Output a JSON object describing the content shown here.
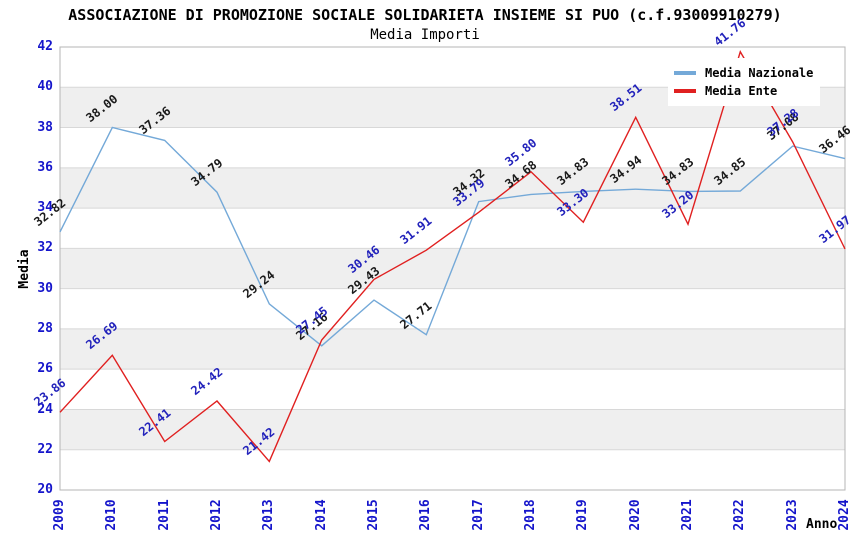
{
  "title": "ASSOCIAZIONE DI PROMOZIONE SOCIALE SOLIDARIETA INSIEME SI PUO (c.f.93009910279)",
  "subtitle": "Media Importi",
  "chart_data": {
    "type": "line",
    "x": [
      2009,
      2010,
      2011,
      2012,
      2013,
      2014,
      2015,
      2016,
      2017,
      2018,
      2019,
      2020,
      2021,
      2022,
      2023,
      2024
    ],
    "series": [
      {
        "name": "Media Nazionale",
        "color": "#74a9d8",
        "label_color": "#1a1a1a",
        "values": [
          32.82,
          38.0,
          37.36,
          34.79,
          29.24,
          27.16,
          29.43,
          27.71,
          34.32,
          34.68,
          34.83,
          34.94,
          34.83,
          34.85,
          37.08,
          36.46
        ]
      },
      {
        "name": "Media Ente",
        "color": "#e02020",
        "label_color": "#2222bb",
        "values": [
          23.86,
          26.69,
          22.41,
          24.42,
          21.42,
          27.45,
          30.46,
          31.91,
          33.79,
          35.8,
          33.3,
          38.51,
          33.2,
          41.76,
          37.28,
          31.97
        ]
      }
    ],
    "xlabel": "Anno",
    "ylabel": "Media",
    "ylim": [
      20,
      42
    ],
    "ytick_step": 2,
    "grid": true,
    "legend_position": "top-right",
    "tick_color": "#1515cb",
    "band_color": "#efefef",
    "grid_color": "#d8d8d8",
    "border_color": "#b5b5b5",
    "background": "#ffffff"
  }
}
